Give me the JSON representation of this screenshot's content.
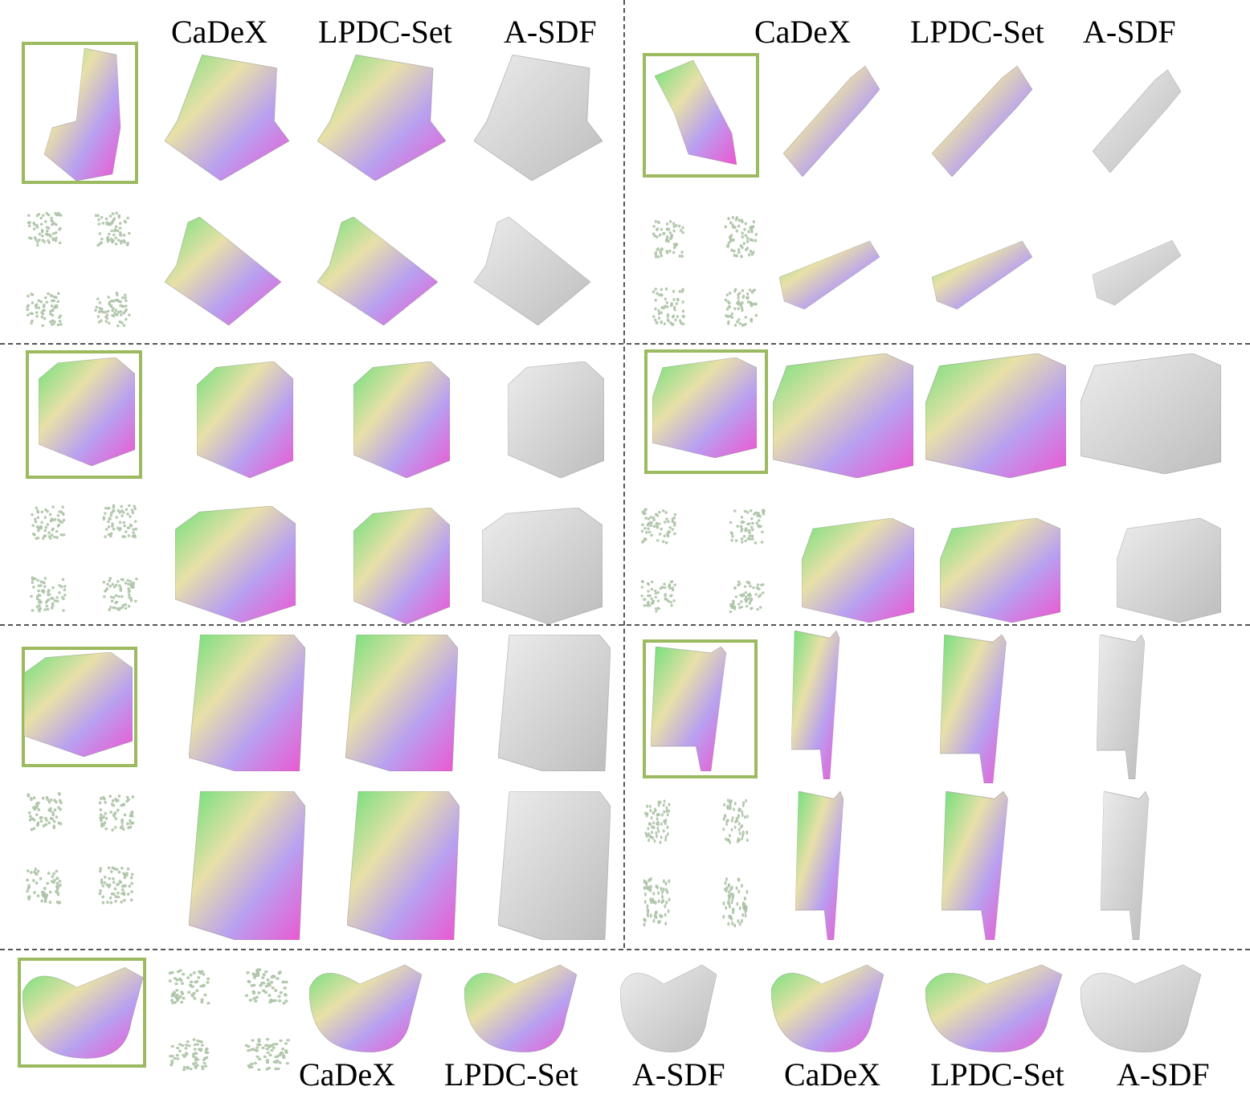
{
  "header_labels": {
    "left": [
      "CaDeX",
      "LPDC-Set",
      "A-SDF"
    ],
    "right": [
      "CaDeX",
      "LPDC-Set",
      "A-SDF"
    ]
  },
  "footer_labels": [
    "CaDeX",
    "LPDC-Set",
    "A-SDF",
    "CaDeX",
    "LPDC-Set",
    "A-SDF"
  ],
  "colors": {
    "frame": "#9cba5f",
    "divider": "#555555",
    "mesh_gray": "#d4d4d4",
    "points": "#b9cfb2"
  }
}
